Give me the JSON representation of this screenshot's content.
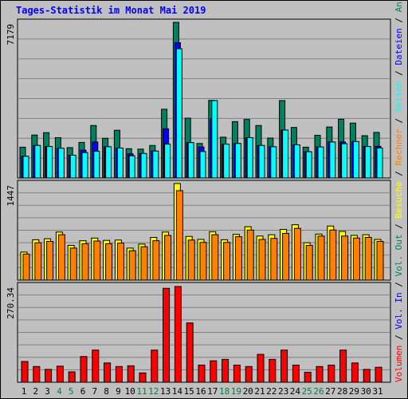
{
  "title": "Tages-Statistik im Monat Mai 2019",
  "colors": {
    "background": "#c0c0c0",
    "anfragen": "#008060",
    "dateien": "#0000ff",
    "seiten": "#00ffff",
    "besuche": "#ffff00",
    "rechner": "#ff8000",
    "volumen": "#ff0000",
    "weekend": "#008040",
    "weekday": "#000000"
  },
  "chart_data": [
    {
      "type": "bar",
      "panel": "top",
      "ymax_label": "7179",
      "ylim": [
        0,
        7179
      ],
      "categories": [
        "1",
        "2",
        "3",
        "4",
        "5",
        "6",
        "7",
        "8",
        "9",
        "10",
        "11",
        "12",
        "13",
        "14",
        "15",
        "16",
        "17",
        "18",
        "19",
        "20",
        "21",
        "22",
        "23",
        "24",
        "25",
        "26",
        "27",
        "28",
        "29",
        "30",
        "31"
      ],
      "weekend_days": [
        "4",
        "5",
        "11",
        "12",
        "18",
        "19",
        "25",
        "26"
      ],
      "legend": [
        {
          "label": "Anfragen",
          "color": "#008060"
        },
        {
          "label": "Dateien",
          "color": "#0000ff"
        },
        {
          "label": "Seiten",
          "color": "#00ffff"
        }
      ],
      "series": [
        {
          "name": "Anfragen",
          "values": [
            1420,
            1980,
            2090,
            1860,
            1400,
            1640,
            2420,
            1830,
            2200,
            1350,
            1330,
            1500,
            3170,
            7179,
            2760,
            1590,
            3580,
            1880,
            2600,
            2700,
            2420,
            1840,
            3570,
            2330,
            1420,
            1970,
            2350,
            2710,
            2530,
            1950,
            2100
          ]
        },
        {
          "name": "Dateien",
          "values": [
            1000,
            1500,
            1450,
            1370,
            1050,
            1280,
            1660,
            1440,
            1380,
            1110,
            1130,
            1240,
            2270,
            6240,
            1630,
            1430,
            2720,
            1560,
            1590,
            1860,
            1500,
            1440,
            2210,
            1530,
            1210,
            1430,
            1660,
            1660,
            1680,
            1450,
            1460
          ]
        },
        {
          "name": "Seiten",
          "values": [
            1000,
            1500,
            1450,
            1370,
            1050,
            1170,
            1230,
            1440,
            1380,
            1020,
            1130,
            1240,
            1560,
            5960,
            1630,
            1220,
            3570,
            1560,
            1590,
            1860,
            1500,
            1440,
            2210,
            1530,
            1210,
            1430,
            1660,
            1580,
            1680,
            1450,
            1380
          ]
        }
      ]
    },
    {
      "type": "bar",
      "panel": "middle",
      "ymax_label": "1447",
      "ylim": [
        0,
        1447
      ],
      "legend": [
        {
          "label": "Besuche",
          "color": "#ffff00"
        },
        {
          "label": "Rechner",
          "color": "#ff8000"
        }
      ],
      "series": [
        {
          "name": "Besuche",
          "values": [
            420,
            605,
            620,
            720,
            520,
            590,
            630,
            595,
            600,
            480,
            540,
            640,
            720,
            1447,
            655,
            610,
            725,
            605,
            685,
            800,
            660,
            680,
            760,
            830,
            560,
            690,
            810,
            730,
            670,
            680,
            610
          ]
        },
        {
          "name": "Rechner",
          "values": [
            390,
            560,
            580,
            680,
            480,
            545,
            585,
            545,
            555,
            440,
            500,
            590,
            670,
            1340,
            600,
            565,
            680,
            565,
            650,
            750,
            610,
            625,
            700,
            775,
            520,
            660,
            750,
            660,
            630,
            640,
            580
          ]
        }
      ]
    },
    {
      "type": "bar",
      "panel": "bottom",
      "ymax_label": "270.34",
      "ylim": [
        0,
        270.34
      ],
      "legend": [
        {
          "label": "Volumen",
          "color": "#ff0000"
        },
        {
          "label": "Vol. In",
          "color": "#0000ff"
        },
        {
          "label": "Vol. Out",
          "color": "#008060"
        }
      ],
      "series": [
        {
          "name": "Volumen",
          "values": [
            58,
            44,
            36,
            45,
            29,
            72,
            90,
            54,
            44,
            46,
            26,
            90,
            263,
            268,
            166,
            48,
            60,
            64,
            48,
            44,
            78,
            64,
            90,
            48,
            28,
            44,
            48,
            90,
            54,
            36,
            42
          ]
        }
      ]
    }
  ]
}
